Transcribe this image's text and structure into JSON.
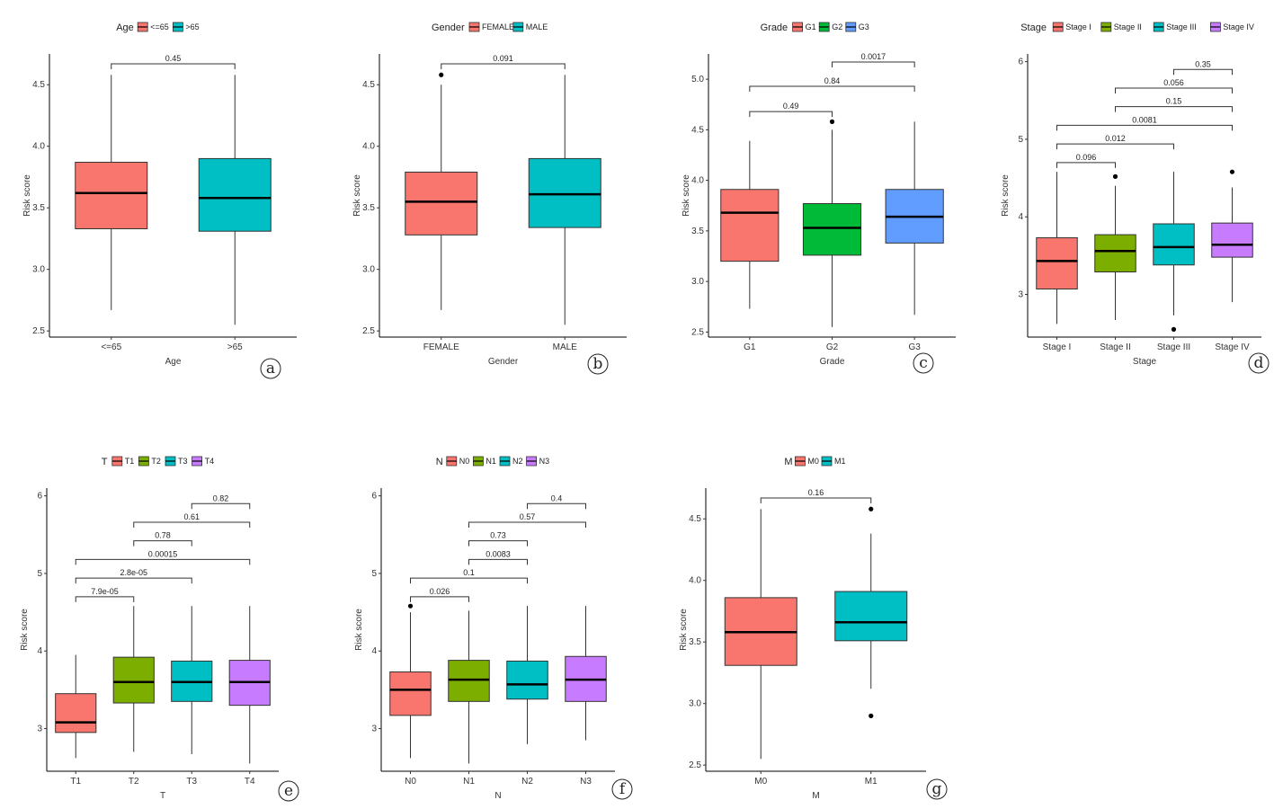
{
  "chart_data": [
    {
      "id": "a",
      "type": "box",
      "panel_label": "a",
      "ylabel": "Risk score",
      "xlabel": "Age",
      "legend_title": "Age",
      "categories": [
        "<=65",
        ">65"
      ],
      "colors": [
        "#F8766D",
        "#00BFC4"
      ],
      "ylim": [
        2.45,
        4.75
      ],
      "yticks": [
        2.5,
        3.0,
        3.5,
        4.0,
        4.5
      ],
      "ytick_labels": [
        "2.5",
        "3.0",
        "3.5",
        "4.0",
        "4.5"
      ],
      "boxes": [
        {
          "min": 2.67,
          "q1": 3.33,
          "median": 3.62,
          "q3": 3.87,
          "max": 4.58,
          "outliers": []
        },
        {
          "min": 2.55,
          "q1": 3.31,
          "median": 3.58,
          "q3": 3.9,
          "max": 4.58,
          "outliers": []
        }
      ],
      "comparisons": [
        {
          "a": 0,
          "b": 1,
          "p": "0.45",
          "y": 4.67
        }
      ]
    },
    {
      "id": "b",
      "type": "box",
      "panel_label": "b",
      "ylabel": "Risk score",
      "xlabel": "Gender",
      "legend_title": "Gender",
      "categories": [
        "FEMALE",
        "MALE"
      ],
      "colors": [
        "#F8766D",
        "#00BFC4"
      ],
      "ylim": [
        2.45,
        4.75
      ],
      "yticks": [
        2.5,
        3.0,
        3.5,
        4.0,
        4.5
      ],
      "ytick_labels": [
        "2.5",
        "3.0",
        "3.5",
        "4.0",
        "4.5"
      ],
      "boxes": [
        {
          "min": 2.67,
          "q1": 3.28,
          "median": 3.55,
          "q3": 3.79,
          "max": 4.5,
          "outliers": [
            4.58
          ]
        },
        {
          "min": 2.55,
          "q1": 3.34,
          "median": 3.61,
          "q3": 3.9,
          "max": 4.58,
          "outliers": []
        }
      ],
      "comparisons": [
        {
          "a": 0,
          "b": 1,
          "p": "0.091",
          "y": 4.67
        }
      ]
    },
    {
      "id": "c",
      "type": "box",
      "panel_label": "c",
      "ylabel": "Risk score",
      "xlabel": "Grade",
      "legend_title": "Grade",
      "categories": [
        "G1",
        "G2",
        "G3"
      ],
      "colors": [
        "#F8766D",
        "#00BA38",
        "#619CFF"
      ],
      "ylim": [
        2.45,
        5.25
      ],
      "yticks": [
        2.5,
        3.0,
        3.5,
        4.0,
        4.5,
        5.0
      ],
      "ytick_labels": [
        "2.5",
        "3.0",
        "3.5",
        "4.0",
        "4.5",
        "5.0"
      ],
      "boxes": [
        {
          "min": 2.73,
          "q1": 3.2,
          "median": 3.68,
          "q3": 3.91,
          "max": 4.39,
          "outliers": []
        },
        {
          "min": 2.55,
          "q1": 3.26,
          "median": 3.53,
          "q3": 3.77,
          "max": 4.5,
          "outliers": [
            4.58
          ]
        },
        {
          "min": 2.67,
          "q1": 3.38,
          "median": 3.64,
          "q3": 3.91,
          "max": 4.58,
          "outliers": []
        }
      ],
      "comparisons": [
        {
          "a": 0,
          "b": 1,
          "p": "0.49",
          "y": 4.68
        },
        {
          "a": 0,
          "b": 2,
          "p": "0.84",
          "y": 4.93
        },
        {
          "a": 1,
          "b": 2,
          "p": "0.0017",
          "y": 5.17
        }
      ]
    },
    {
      "id": "d",
      "type": "box",
      "panel_label": "d",
      "ylabel": "Risk score",
      "xlabel": "Stage",
      "legend_title": "Stage",
      "categories": [
        "Stage I",
        "Stage II",
        "Stage III",
        "Stage IV"
      ],
      "colors": [
        "#F8766D",
        "#7CAE00",
        "#00BFC4",
        "#C77CFF"
      ],
      "ylim": [
        2.45,
        6.1
      ],
      "yticks": [
        3,
        4,
        5,
        6
      ],
      "ytick_labels": [
        "3",
        "4",
        "5",
        "6"
      ],
      "boxes": [
        {
          "min": 2.62,
          "q1": 3.07,
          "median": 3.43,
          "q3": 3.73,
          "max": 4.58,
          "outliers": []
        },
        {
          "min": 2.67,
          "q1": 3.29,
          "median": 3.56,
          "q3": 3.77,
          "max": 4.4,
          "outliers": [
            4.52
          ]
        },
        {
          "min": 2.73,
          "q1": 3.38,
          "median": 3.61,
          "q3": 3.91,
          "max": 4.58,
          "outliers": [
            2.55
          ]
        },
        {
          "min": 2.9,
          "q1": 3.48,
          "median": 3.64,
          "q3": 3.92,
          "max": 4.38,
          "outliers": [
            4.58
          ]
        }
      ],
      "comparisons": [
        {
          "a": 0,
          "b": 1,
          "p": "0.096",
          "y": 4.7
        },
        {
          "a": 0,
          "b": 2,
          "p": "0.012",
          "y": 4.94
        },
        {
          "a": 0,
          "b": 3,
          "p": "0.0081",
          "y": 5.18
        },
        {
          "a": 1,
          "b": 3,
          "p": "0.15",
          "y": 5.42
        },
        {
          "a": 1,
          "b": 3,
          "p": "0.056",
          "y": 5.66
        },
        {
          "a": 2,
          "b": 3,
          "p": "0.35",
          "y": 5.9
        }
      ]
    },
    {
      "id": "e",
      "type": "box",
      "panel_label": "e",
      "ylabel": "Risk score",
      "xlabel": "T",
      "legend_title": "T",
      "categories": [
        "T1",
        "T2",
        "T3",
        "T4"
      ],
      "colors": [
        "#F8766D",
        "#7CAE00",
        "#00BFC4",
        "#C77CFF"
      ],
      "ylim": [
        2.45,
        6.1
      ],
      "yticks": [
        3,
        4,
        5,
        6
      ],
      "ytick_labels": [
        "3",
        "4",
        "5",
        "6"
      ],
      "boxes": [
        {
          "min": 2.62,
          "q1": 2.95,
          "median": 3.08,
          "q3": 3.45,
          "max": 3.95,
          "outliers": []
        },
        {
          "min": 2.7,
          "q1": 3.33,
          "median": 3.6,
          "q3": 3.92,
          "max": 4.58,
          "outliers": []
        },
        {
          "min": 2.67,
          "q1": 3.35,
          "median": 3.6,
          "q3": 3.87,
          "max": 4.58,
          "outliers": []
        },
        {
          "min": 2.55,
          "q1": 3.3,
          "median": 3.6,
          "q3": 3.88,
          "max": 4.58,
          "outliers": []
        }
      ],
      "comparisons": [
        {
          "a": 0,
          "b": 1,
          "p": "7.9e-05",
          "y": 4.7
        },
        {
          "a": 0,
          "b": 2,
          "p": "2.8e-05",
          "y": 4.94
        },
        {
          "a": 0,
          "b": 3,
          "p": "0.00015",
          "y": 5.18
        },
        {
          "a": 1,
          "b": 2,
          "p": "0.78",
          "y": 5.42
        },
        {
          "a": 1,
          "b": 3,
          "p": "0.61",
          "y": 5.66
        },
        {
          "a": 2,
          "b": 3,
          "p": "0.82",
          "y": 5.9
        }
      ]
    },
    {
      "id": "f",
      "type": "box",
      "panel_label": "f",
      "ylabel": "Risk score",
      "xlabel": "N",
      "legend_title": "N",
      "categories": [
        "N0",
        "N1",
        "N2",
        "N3"
      ],
      "colors": [
        "#F8766D",
        "#7CAE00",
        "#00BFC4",
        "#C77CFF"
      ],
      "ylim": [
        2.45,
        6.1
      ],
      "yticks": [
        3,
        4,
        5,
        6
      ],
      "ytick_labels": [
        "3",
        "4",
        "5",
        "6"
      ],
      "boxes": [
        {
          "min": 2.62,
          "q1": 3.17,
          "median": 3.5,
          "q3": 3.73,
          "max": 4.5,
          "outliers": [
            4.58
          ]
        },
        {
          "min": 2.55,
          "q1": 3.35,
          "median": 3.63,
          "q3": 3.88,
          "max": 4.52,
          "outliers": []
        },
        {
          "min": 2.8,
          "q1": 3.38,
          "median": 3.57,
          "q3": 3.87,
          "max": 4.58,
          "outliers": []
        },
        {
          "min": 2.85,
          "q1": 3.35,
          "median": 3.63,
          "q3": 3.93,
          "max": 4.58,
          "outliers": []
        }
      ],
      "comparisons": [
        {
          "a": 0,
          "b": 1,
          "p": "0.026",
          "y": 4.7
        },
        {
          "a": 0,
          "b": 2,
          "p": "0.1",
          "y": 4.94
        },
        {
          "a": 1,
          "b": 2,
          "p": "0.0083",
          "y": 5.18
        },
        {
          "a": 1,
          "b": 2,
          "p": "0.73",
          "y": 5.42
        },
        {
          "a": 1,
          "b": 3,
          "p": "0.57",
          "y": 5.66
        },
        {
          "a": 2,
          "b": 3,
          "p": "0.4",
          "y": 5.9
        }
      ]
    },
    {
      "id": "g",
      "type": "box",
      "panel_label": "g",
      "ylabel": "Risk score",
      "xlabel": "M",
      "legend_title": "M",
      "categories": [
        "M0",
        "M1"
      ],
      "colors": [
        "#F8766D",
        "#00BFC4"
      ],
      "ylim": [
        2.45,
        4.75
      ],
      "yticks": [
        2.5,
        3.0,
        3.5,
        4.0,
        4.5
      ],
      "ytick_labels": [
        "2.5",
        "3.0",
        "3.5",
        "4.0",
        "4.5"
      ],
      "boxes": [
        {
          "min": 2.55,
          "q1": 3.31,
          "median": 3.58,
          "q3": 3.86,
          "max": 4.58,
          "outliers": []
        },
        {
          "min": 3.12,
          "q1": 3.51,
          "median": 3.66,
          "q3": 3.91,
          "max": 4.38,
          "outliers": [
            4.58,
            2.9
          ]
        }
      ],
      "comparisons": [
        {
          "a": 0,
          "b": 1,
          "p": "0.16",
          "y": 4.67
        }
      ]
    }
  ]
}
